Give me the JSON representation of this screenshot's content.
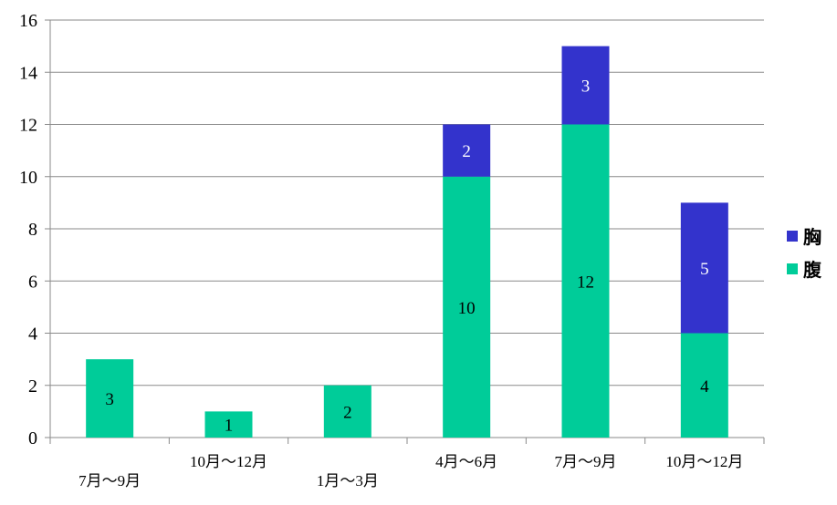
{
  "chart_data": {
    "type": "bar",
    "stacked": true,
    "categories": [
      "7月～9月",
      "10月～12月",
      "1月～3月",
      "4月～6月",
      "7月～9月",
      "10月～12月"
    ],
    "series": [
      {
        "name": "腹",
        "color": "#00CC99",
        "values": [
          3,
          1,
          2,
          10,
          12,
          4
        ]
      },
      {
        "name": "胸",
        "color": "#3333CC",
        "values": [
          0,
          0,
          0,
          2,
          3,
          5
        ]
      }
    ],
    "ylim": [
      0,
      16
    ],
    "yticks": [
      0,
      2,
      4,
      6,
      8,
      10,
      12,
      14,
      16
    ],
    "grid": true,
    "legend": {
      "position": "right",
      "order": [
        "胸",
        "腹"
      ]
    }
  }
}
